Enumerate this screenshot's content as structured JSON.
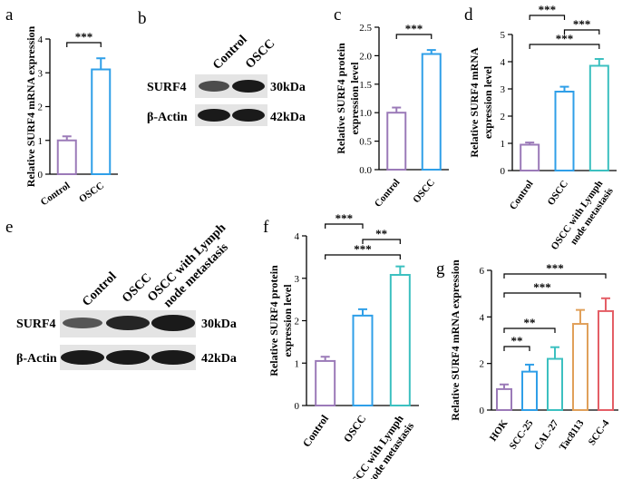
{
  "colors": {
    "purple": "#9b7ab8",
    "blue": "#2f9fe8",
    "teal": "#3cc0c0",
    "orange": "#e0a05a",
    "red": "#e45e66",
    "blot_band": "#1a1a1a"
  },
  "blots": [
    {
      "panel": "b",
      "lanes": [
        "Control",
        "OSCC"
      ],
      "rows": [
        {
          "protein": "SURF4",
          "size": "30kDa",
          "intensity": [
            0.75,
            1.0
          ]
        },
        {
          "protein": "β-Actin",
          "size": "42kDa",
          "intensity": [
            1.0,
            1.0
          ]
        }
      ]
    },
    {
      "panel": "e",
      "lanes": [
        "Control",
        "OSCC",
        "OSCC with Lymph node metastasis"
      ],
      "rows": [
        {
          "protein": "SURF4",
          "size": "30kDa",
          "intensity": [
            0.7,
            0.95,
            1.0
          ]
        },
        {
          "protein": "β-Actin",
          "size": "42kDa",
          "intensity": [
            1.0,
            1.0,
            1.0
          ]
        }
      ]
    }
  ],
  "chart_data": [
    {
      "panel": "a",
      "type": "bar",
      "ylabel": "Relative SURF4 mRNA expression",
      "categories": [
        "Control",
        "OSCC"
      ],
      "values": [
        1.0,
        3.1
      ],
      "errors": [
        0.12,
        0.33
      ],
      "colors": [
        "#9b7ab8",
        "#2f9fe8"
      ],
      "ylim": [
        0,
        4
      ],
      "yticks": [
        "0",
        "1",
        "2",
        "3",
        "4"
      ],
      "significance": [
        {
          "from": 0,
          "to": 1,
          "label": "***"
        }
      ]
    },
    {
      "panel": "c",
      "type": "bar",
      "ylabel": "Relative SURF4 protein expression level",
      "categories": [
        "Control",
        "OSCC"
      ],
      "values": [
        1.0,
        2.03
      ],
      "errors": [
        0.09,
        0.07
      ],
      "colors": [
        "#9b7ab8",
        "#2f9fe8"
      ],
      "ylim": [
        0,
        2.5
      ],
      "yticks": [
        "0.0",
        "0.5",
        "1.0",
        "1.5",
        "2.0",
        "2.5"
      ],
      "significance": [
        {
          "from": 0,
          "to": 1,
          "label": "***"
        }
      ]
    },
    {
      "panel": "d",
      "type": "bar",
      "ylabel": "Relative SURF4 mRNA expression level",
      "categories": [
        "Control",
        "OSCC",
        "OSCC with Lymph node metastasis"
      ],
      "values": [
        0.95,
        2.9,
        3.85
      ],
      "errors": [
        0.08,
        0.18,
        0.25
      ],
      "colors": [
        "#9b7ab8",
        "#2f9fe8",
        "#3cc0c0"
      ],
      "ylim": [
        0,
        5
      ],
      "yticks": [
        "0",
        "1",
        "2",
        "3",
        "4",
        "5"
      ],
      "significance": [
        {
          "from": 0,
          "to": 1,
          "label": "***"
        },
        {
          "from": 1,
          "to": 2,
          "label": "***"
        },
        {
          "from": 0,
          "to": 2,
          "label": "***"
        }
      ]
    },
    {
      "panel": "f",
      "type": "bar",
      "ylabel": "Relative SURF4 protein expression level",
      "categories": [
        "Control",
        "OSCC",
        "OSCC with Lymph node metastasis"
      ],
      "values": [
        1.05,
        2.12,
        3.08
      ],
      "errors": [
        0.1,
        0.15,
        0.2
      ],
      "colors": [
        "#9b7ab8",
        "#2f9fe8",
        "#3cc0c0"
      ],
      "ylim": [
        0,
        4
      ],
      "yticks": [
        "0",
        "1",
        "2",
        "3",
        "4"
      ],
      "significance": [
        {
          "from": 0,
          "to": 1,
          "label": "***"
        },
        {
          "from": 1,
          "to": 2,
          "label": "**"
        },
        {
          "from": 0,
          "to": 2,
          "label": "***"
        }
      ]
    },
    {
      "panel": "g",
      "type": "bar",
      "ylabel": "Relative SURF4 mRNA expression",
      "categories": [
        "HOK",
        "SCC-25",
        "CAL-27",
        "Tac8113",
        "SCC-4"
      ],
      "values": [
        0.9,
        1.65,
        2.2,
        3.7,
        4.25
      ],
      "errors": [
        0.2,
        0.3,
        0.5,
        0.6,
        0.55
      ],
      "colors": [
        "#9b7ab8",
        "#2f9fe8",
        "#3cc0c0",
        "#e0a05a",
        "#e45e66"
      ],
      "ylim": [
        0,
        6
      ],
      "yticks": [
        "0",
        "2",
        "4",
        "6"
      ],
      "significance": [
        {
          "from": 0,
          "to": 1,
          "label": "**"
        },
        {
          "from": 0,
          "to": 2,
          "label": "**"
        },
        {
          "from": 0,
          "to": 3,
          "label": "***"
        },
        {
          "from": 0,
          "to": 4,
          "label": "***"
        }
      ]
    }
  ]
}
